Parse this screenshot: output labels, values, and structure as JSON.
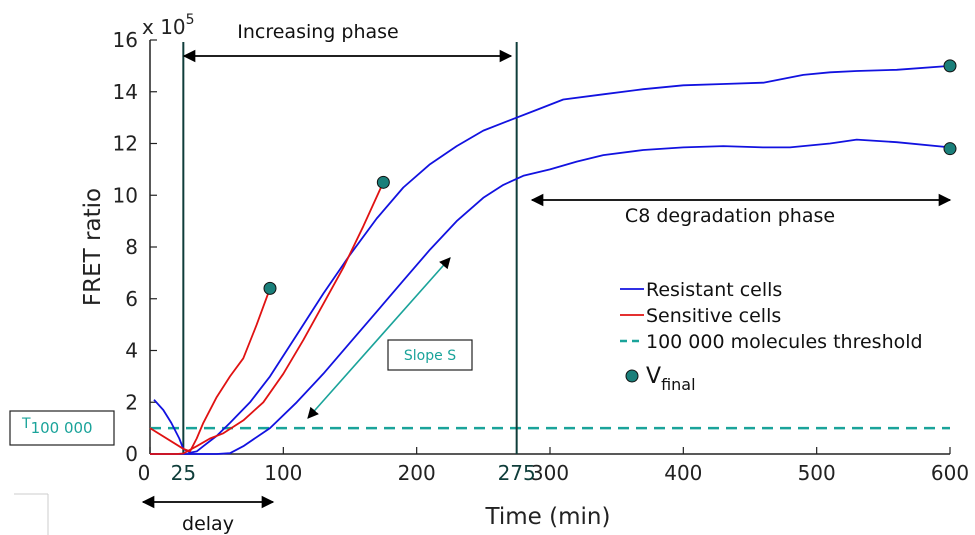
{
  "chart_data": {
    "type": "line",
    "xlabel": "Time (min)",
    "ylabel": "FRET ratio",
    "y_multiplier_label": "x 10",
    "y_multiplier_exp": "5",
    "xlim": [
      0,
      600
    ],
    "ylim": [
      0,
      16
    ],
    "xticks": [
      0,
      100,
      200,
      300,
      400,
      500,
      600
    ],
    "xticks_extra": [
      25,
      275
    ],
    "yticks": [
      0,
      2,
      4,
      6,
      8,
      10,
      12,
      14,
      16
    ],
    "grid": false,
    "legend_position": "center-right",
    "series": [
      {
        "name": "Resistant cells",
        "color": "#1212e0",
        "style": "solid",
        "x": [
          3,
          10,
          16,
          22,
          25,
          30,
          35,
          40,
          50,
          60,
          75,
          90,
          110,
          130,
          150,
          170,
          190,
          210,
          230,
          250,
          270,
          290,
          310,
          340,
          370,
          400,
          430,
          460,
          490,
          510,
          530,
          560,
          600
        ],
        "y": [
          2.1,
          1.7,
          1.2,
          0.6,
          0.2,
          0.05,
          0.1,
          0.3,
          0.7,
          1.2,
          2.0,
          3.0,
          4.6,
          6.2,
          7.7,
          9.1,
          10.3,
          11.2,
          11.9,
          12.5,
          12.9,
          13.3,
          13.7,
          13.9,
          14.1,
          14.25,
          14.3,
          14.35,
          14.65,
          14.75,
          14.8,
          14.85,
          15.0
        ]
      },
      {
        "name": "Resistant cells",
        "color": "#1212e0",
        "style": "solid",
        "x": [
          0,
          30,
          50,
          60,
          70,
          90,
          110,
          130,
          150,
          170,
          190,
          210,
          230,
          250,
          265,
          280,
          300,
          320,
          340,
          370,
          400,
          430,
          460,
          480,
          510,
          530,
          560,
          600
        ],
        "y": [
          0,
          0,
          0,
          0.03,
          0.3,
          1.0,
          2.0,
          3.1,
          4.3,
          5.5,
          6.7,
          7.9,
          9.0,
          9.9,
          10.4,
          10.75,
          11.0,
          11.3,
          11.55,
          11.75,
          11.85,
          11.9,
          11.85,
          11.85,
          12.0,
          12.15,
          12.05,
          11.85
        ]
      },
      {
        "name": "Sensitive cells",
        "color": "#e01212",
        "style": "solid",
        "x": [
          0,
          25,
          30,
          35,
          40,
          50,
          60,
          70,
          80,
          90
        ],
        "y": [
          1.0,
          0.2,
          0.1,
          0.6,
          1.2,
          2.2,
          3.0,
          3.7,
          5.0,
          6.4
        ]
      },
      {
        "name": "Sensitive cells",
        "color": "#e01212",
        "style": "solid",
        "x": [
          0,
          20,
          25,
          35,
          45,
          55,
          70,
          85,
          100,
          115,
          130,
          145,
          160,
          175
        ],
        "y": [
          0,
          0,
          0.02,
          0.3,
          0.6,
          0.8,
          1.3,
          2.0,
          3.1,
          4.4,
          5.8,
          7.2,
          8.8,
          10.5
        ]
      }
    ],
    "final_points": [
      {
        "x": 90,
        "y": 6.4
      },
      {
        "x": 175,
        "y": 10.5
      },
      {
        "x": 600,
        "y": 15.0
      },
      {
        "x": 600,
        "y": 11.8
      }
    ],
    "threshold": {
      "name": "100 000 molecules threshold",
      "y": 1.0,
      "color": "#1aa39a"
    },
    "vertical_lines": [
      25,
      275
    ],
    "annotations": {
      "increasing_phase": "Increasing phase",
      "degradation_phase": "C8 degradation phase",
      "delay": "delay",
      "slope": "Slope S",
      "tau_prefix": "T",
      "tau_sub": "100 000"
    },
    "legend": [
      {
        "label": "Resistant cells",
        "kind": "line",
        "color": "#1212e0"
      },
      {
        "label": "Sensitive cells",
        "kind": "line",
        "color": "#e01212"
      },
      {
        "label": "100 000 molecules threshold",
        "kind": "dash",
        "color": "#1aa39a"
      },
      {
        "label": "V",
        "sub": "final",
        "kind": "marker",
        "color": "#1a7f7a"
      }
    ],
    "colors": {
      "axis": "#222222",
      "vline": "#0f3d3a",
      "marker_fill": "#1a7f7a",
      "slope_arrow": "#1aa39a"
    }
  }
}
